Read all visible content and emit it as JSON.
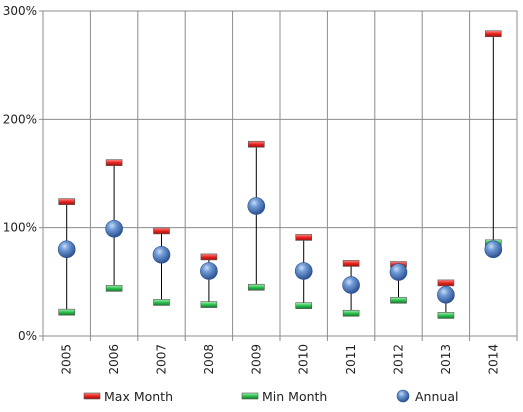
{
  "chart_data": {
    "type": "scatter",
    "categories": [
      "2005",
      "2006",
      "2007",
      "2008",
      "2009",
      "2010",
      "2011",
      "2012",
      "2013",
      "2014"
    ],
    "series": [
      {
        "name": "Max Month",
        "values": [
          124,
          160,
          97,
          73,
          177,
          91,
          67,
          66,
          49,
          279
        ],
        "color": "#e8231f",
        "marker": "dash"
      },
      {
        "name": "Min Month",
        "values": [
          22,
          44,
          31,
          29,
          45,
          28,
          21,
          33,
          19,
          86
        ],
        "color": "#2ec24f",
        "marker": "dash"
      },
      {
        "name": "Annual",
        "values": [
          80,
          99,
          75,
          60,
          120,
          60,
          47,
          59,
          38,
          80
        ],
        "color": "#3f6fba",
        "marker": "sphere"
      }
    ],
    "ylim": [
      0,
      300
    ],
    "yticks": [
      0,
      100,
      200,
      300
    ],
    "ytick_labels": [
      "0%",
      "100%",
      "200%",
      "300%"
    ],
    "grid": "vertical and horizontal",
    "legend_position": "bottom"
  }
}
